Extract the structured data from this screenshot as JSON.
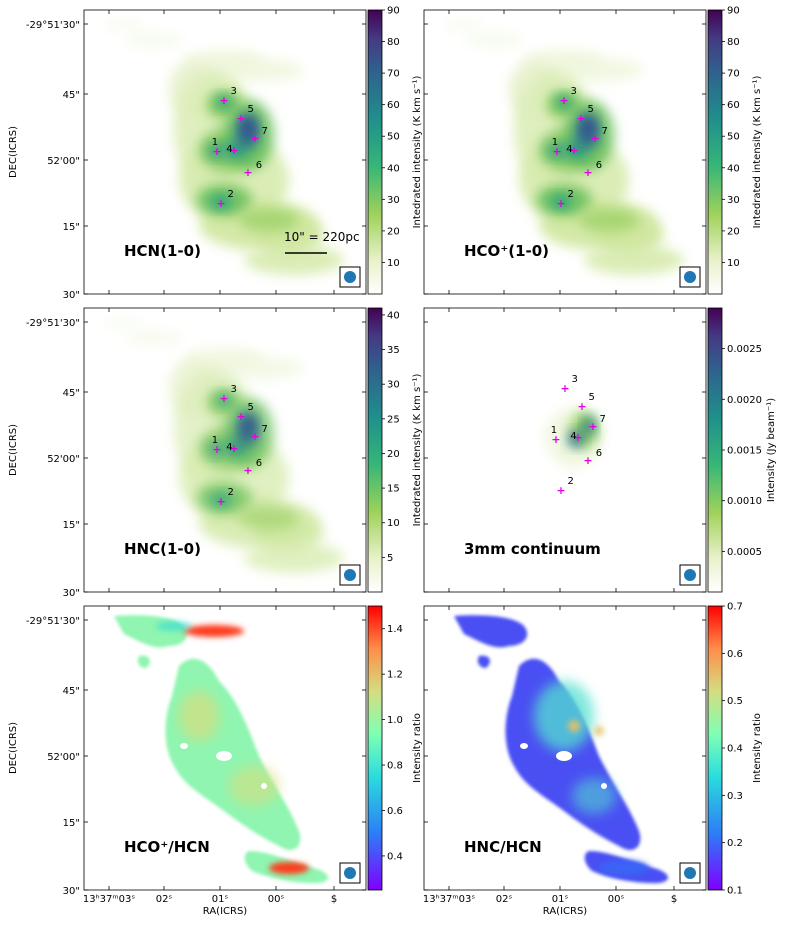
{
  "chart_data": [
    {
      "type": "heatmap",
      "label": "HCN(1-0)",
      "colormap": "viridis_r_white",
      "colorbar": {
        "label": "Intedrated intensity (K km s⁻¹)",
        "ticks": [
          "10",
          "20",
          "30",
          "40",
          "50",
          "60",
          "70",
          "80",
          "90"
        ],
        "tick_values": [
          10,
          20,
          30,
          40,
          50,
          60,
          70,
          80,
          90
        ],
        "range": [
          0,
          90
        ]
      },
      "sources": [
        "1",
        "2",
        "3",
        "4",
        "5",
        "6",
        "7"
      ],
      "scalebar": "10\" = 220pc",
      "source_map": "gas"
    },
    {
      "type": "heatmap",
      "label": "HCO⁺(1-0)",
      "colormap": "viridis_r_white",
      "colorbar": {
        "label": "Intedrated intensity (K km s⁻¹)",
        "ticks": [
          "10",
          "20",
          "30",
          "40",
          "50",
          "60",
          "70",
          "80",
          "90"
        ],
        "tick_values": [
          10,
          20,
          30,
          40,
          50,
          60,
          70,
          80,
          90
        ],
        "range": [
          0,
          90
        ]
      },
      "sources": [
        "1",
        "2",
        "3",
        "4",
        "5",
        "6",
        "7"
      ],
      "source_map": "gas"
    },
    {
      "type": "heatmap",
      "label": "HNC(1-0)",
      "colormap": "viridis_r_white",
      "colorbar": {
        "label": "Intedrated intensity (K km s⁻¹)",
        "ticks": [
          "5",
          "10",
          "15",
          "20",
          "25",
          "30",
          "35",
          "40"
        ],
        "tick_values": [
          5,
          10,
          15,
          20,
          25,
          30,
          35,
          40
        ],
        "range": [
          0,
          41
        ]
      },
      "sources": [
        "1",
        "2",
        "3",
        "4",
        "5",
        "6",
        "7"
      ],
      "source_map": "gas"
    },
    {
      "type": "heatmap",
      "label": "3mm continuum",
      "colormap": "viridis_r_white",
      "colorbar": {
        "label": "Intensity (Jy beam⁻¹)",
        "ticks": [
          "0.0005",
          "0.0010",
          "0.0015",
          "0.0020",
          "0.0025"
        ],
        "tick_values": [
          0.0005,
          0.001,
          0.0015,
          0.002,
          0.0025
        ],
        "range": [
          0.0001,
          0.0029
        ]
      },
      "sources": [
        "1",
        "2",
        "3",
        "4",
        "5",
        "6",
        "7"
      ],
      "source_map": "cont"
    },
    {
      "type": "heatmap",
      "label": "HCO⁺/HCN",
      "colormap": "rainbow",
      "colorbar": {
        "label": "Intensity ratio",
        "ticks": [
          "0.4",
          "0.6",
          "0.8",
          "1.0",
          "1.2",
          "1.4"
        ],
        "tick_values": [
          0.4,
          0.6,
          0.8,
          1.0,
          1.2,
          1.4
        ],
        "range": [
          0.25,
          1.5
        ]
      },
      "sources": [],
      "source_map": "ratio1"
    },
    {
      "type": "heatmap",
      "label": "HNC/HCN",
      "colormap": "rainbow",
      "colorbar": {
        "label": "Intensity ratio",
        "ticks": [
          "0.1",
          "0.2",
          "0.3",
          "0.4",
          "0.5",
          "0.6",
          "0.7"
        ],
        "tick_values": [
          0.1,
          0.2,
          0.3,
          0.4,
          0.5,
          0.6,
          0.7
        ],
        "range": [
          0.1,
          0.7
        ]
      },
      "sources": [],
      "source_map": "ratio2"
    }
  ],
  "axes": {
    "ylabel": "DEC(ICRS)",
    "xlabel": "RA(ICRS)",
    "yticks": [
      "-29°51'30\"",
      "45\"",
      "52'00\"",
      "15\"",
      "30\""
    ],
    "xticks": [
      "13ʰ37ᵐ03ˢ",
      "02ˢ",
      "01ˢ",
      "00ˢ",
      "$"
    ]
  }
}
